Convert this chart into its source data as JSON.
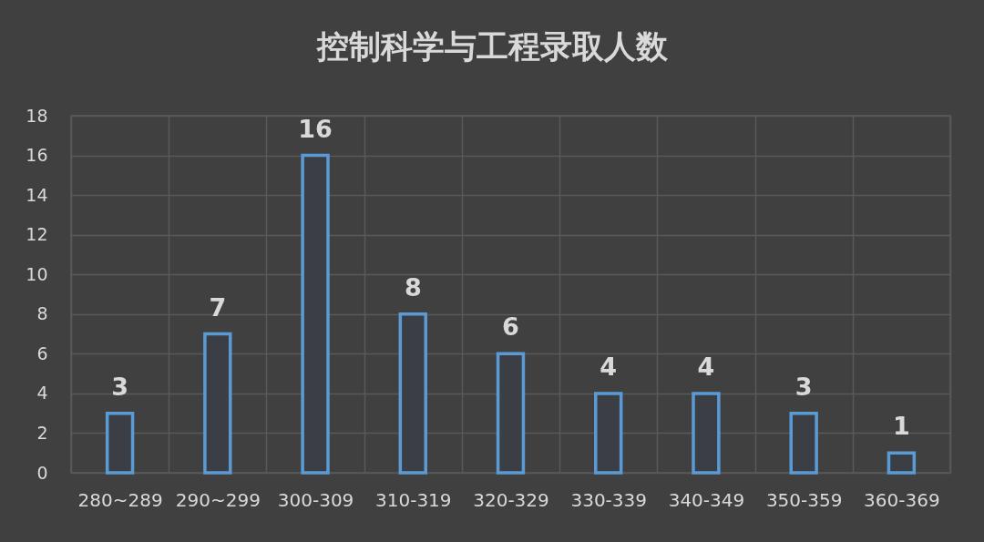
{
  "chart_data": {
    "type": "bar",
    "title": "控制科学与工程录取人数",
    "categories": [
      "280~289",
      "290~299",
      "300-309",
      "310-319",
      "320-329",
      "330-339",
      "340-349",
      "350-359",
      "360-369"
    ],
    "values": [
      3,
      7,
      16,
      8,
      6,
      4,
      4,
      3,
      1
    ],
    "color": "#5b9bd5",
    "ylim": [
      0,
      18
    ],
    "yticks": [
      0,
      2,
      4,
      6,
      8,
      10,
      12,
      14,
      16,
      18
    ],
    "grid": true,
    "data_labels": true
  }
}
